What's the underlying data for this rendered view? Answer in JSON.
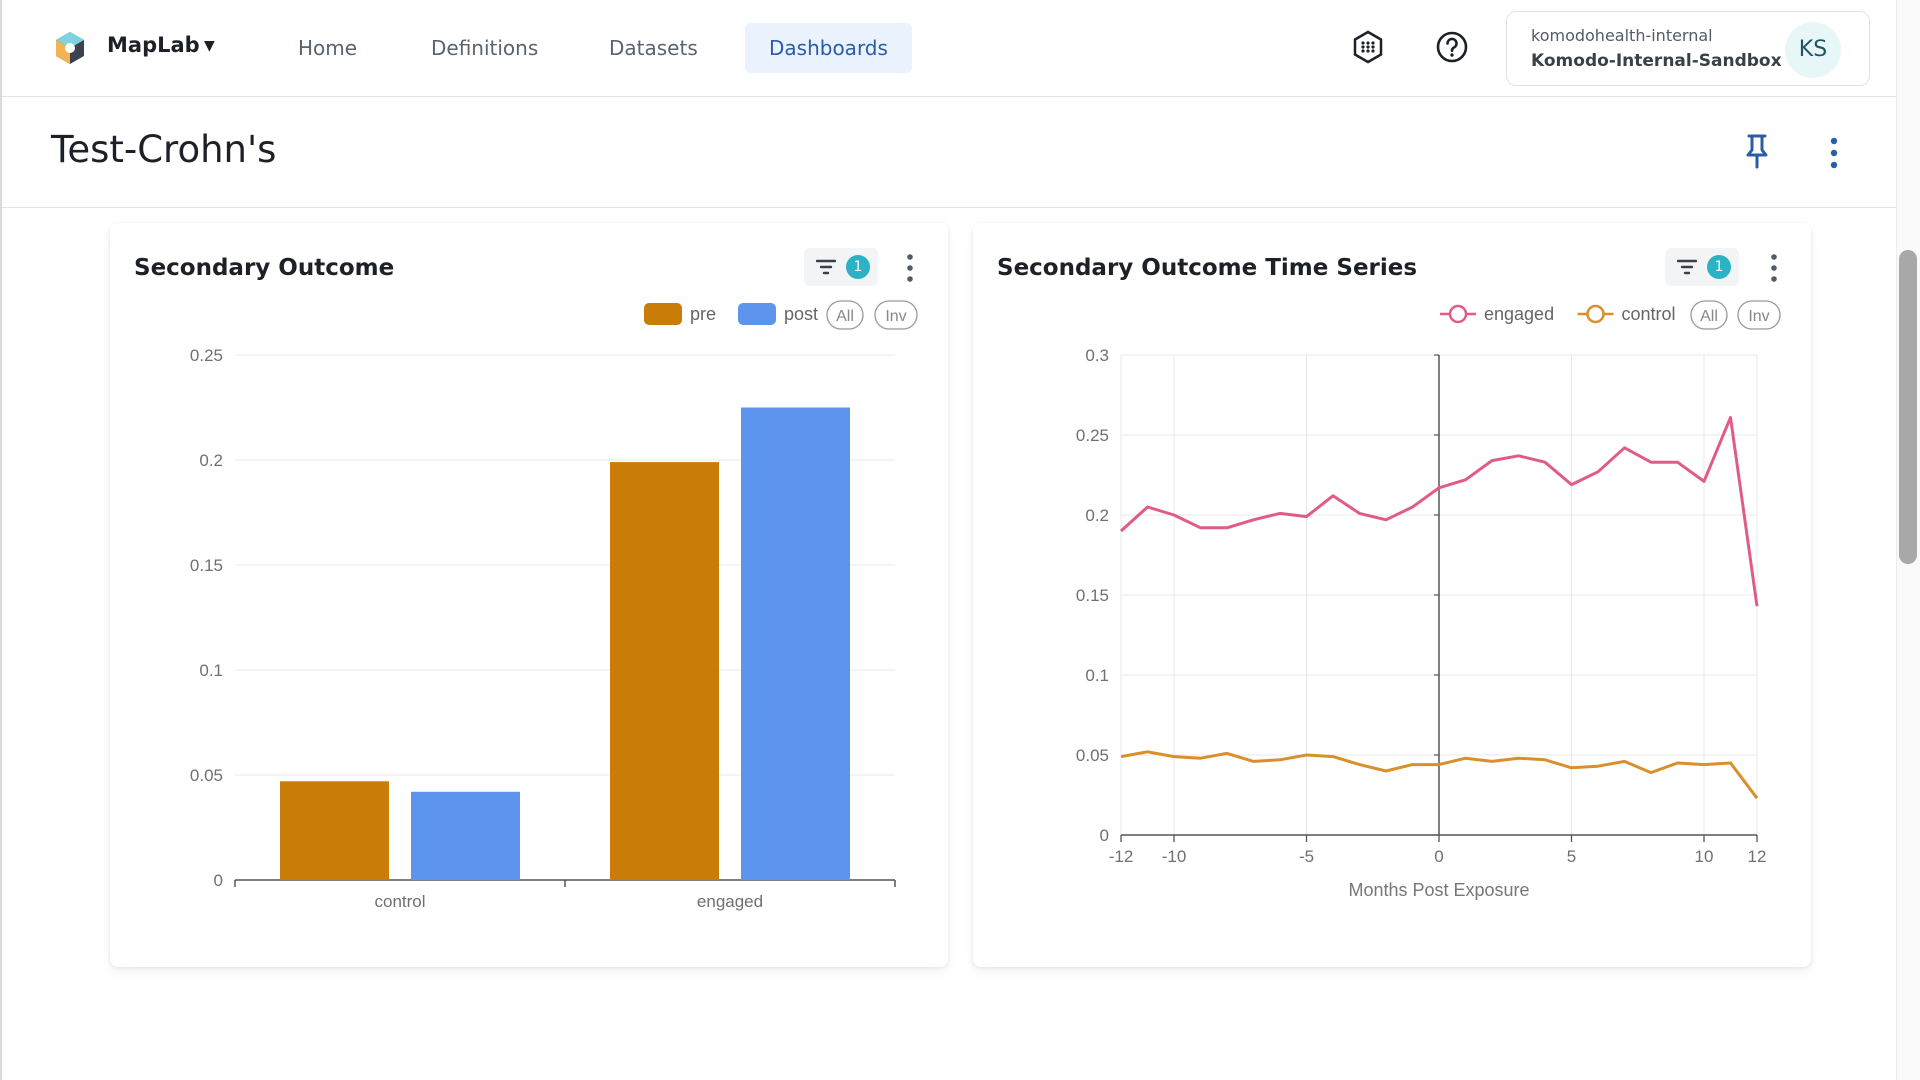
{
  "app": {
    "name": "MapLab"
  },
  "nav": {
    "items": [
      {
        "label": "Home",
        "active": false
      },
      {
        "label": "Definitions",
        "active": false
      },
      {
        "label": "Datasets",
        "active": false
      },
      {
        "label": "Dashboards",
        "active": true
      }
    ]
  },
  "header_icons": [
    "chip-icon",
    "help-circle-icon"
  ],
  "account": {
    "org": "komodohealth-internal",
    "workspace": "Komodo-Internal-Sandbox",
    "initials": "KS"
  },
  "page": {
    "title": "Test-Crohn's"
  },
  "panels": [
    {
      "title": "Secondary Outcome",
      "filter_count": "1",
      "legend_all": "All",
      "legend_inv": "Inv"
    },
    {
      "title": "Secondary Outcome Time Series",
      "filter_count": "1",
      "legend_all": "All",
      "legend_inv": "Inv"
    }
  ],
  "colors": {
    "pre": "#c97c07",
    "post": "#5d95ee",
    "engaged": "#e05c86",
    "control": "#d98f2b",
    "accent": "#2bb2c4",
    "active_nav_bg": "#eaf2fd"
  },
  "chart_data": [
    {
      "type": "bar",
      "title": "Secondary Outcome",
      "categories": [
        "control",
        "engaged"
      ],
      "series": [
        {
          "name": "pre",
          "values": [
            0.047,
            0.199
          ]
        },
        {
          "name": "post",
          "values": [
            0.042,
            0.225
          ]
        }
      ],
      "yticks": [
        "0",
        "0.05",
        "0.1",
        "0.15",
        "0.2",
        "0.25"
      ],
      "ylim": [
        0,
        0.25
      ],
      "grid": true,
      "legend": "top-right"
    },
    {
      "type": "line",
      "title": "Secondary Outcome Time Series",
      "xlabel": "Months Post Exposure",
      "x": [
        -12,
        -11,
        -10,
        -9,
        -8,
        -7,
        -6,
        -5,
        -4,
        -3,
        -2,
        -1,
        0,
        1,
        2,
        3,
        4,
        5,
        6,
        7,
        8,
        9,
        10,
        11,
        12
      ],
      "series": [
        {
          "name": "engaged",
          "values": [
            0.19,
            0.205,
            0.2,
            0.192,
            0.192,
            0.197,
            0.201,
            0.199,
            0.212,
            0.201,
            0.197,
            0.205,
            0.217,
            0.222,
            0.234,
            0.237,
            0.233,
            0.219,
            0.227,
            0.242,
            0.233,
            0.233,
            0.221,
            0.261,
            0.143
          ]
        },
        {
          "name": "control",
          "values": [
            0.049,
            0.052,
            0.049,
            0.048,
            0.051,
            0.046,
            0.047,
            0.05,
            0.049,
            0.044,
            0.04,
            0.044,
            0.044,
            0.048,
            0.046,
            0.048,
            0.047,
            0.042,
            0.043,
            0.046,
            0.039,
            0.045,
            0.044,
            0.045,
            0.023
          ]
        }
      ],
      "xticks": [
        -12,
        -10,
        -5,
        0,
        5,
        10,
        12
      ],
      "yticks": [
        "0",
        "0.05",
        "0.1",
        "0.15",
        "0.2",
        "0.25",
        "0.3"
      ],
      "xlim": [
        -12,
        12
      ],
      "ylim": [
        0,
        0.3
      ],
      "grid": true,
      "legend": "top-right"
    }
  ]
}
